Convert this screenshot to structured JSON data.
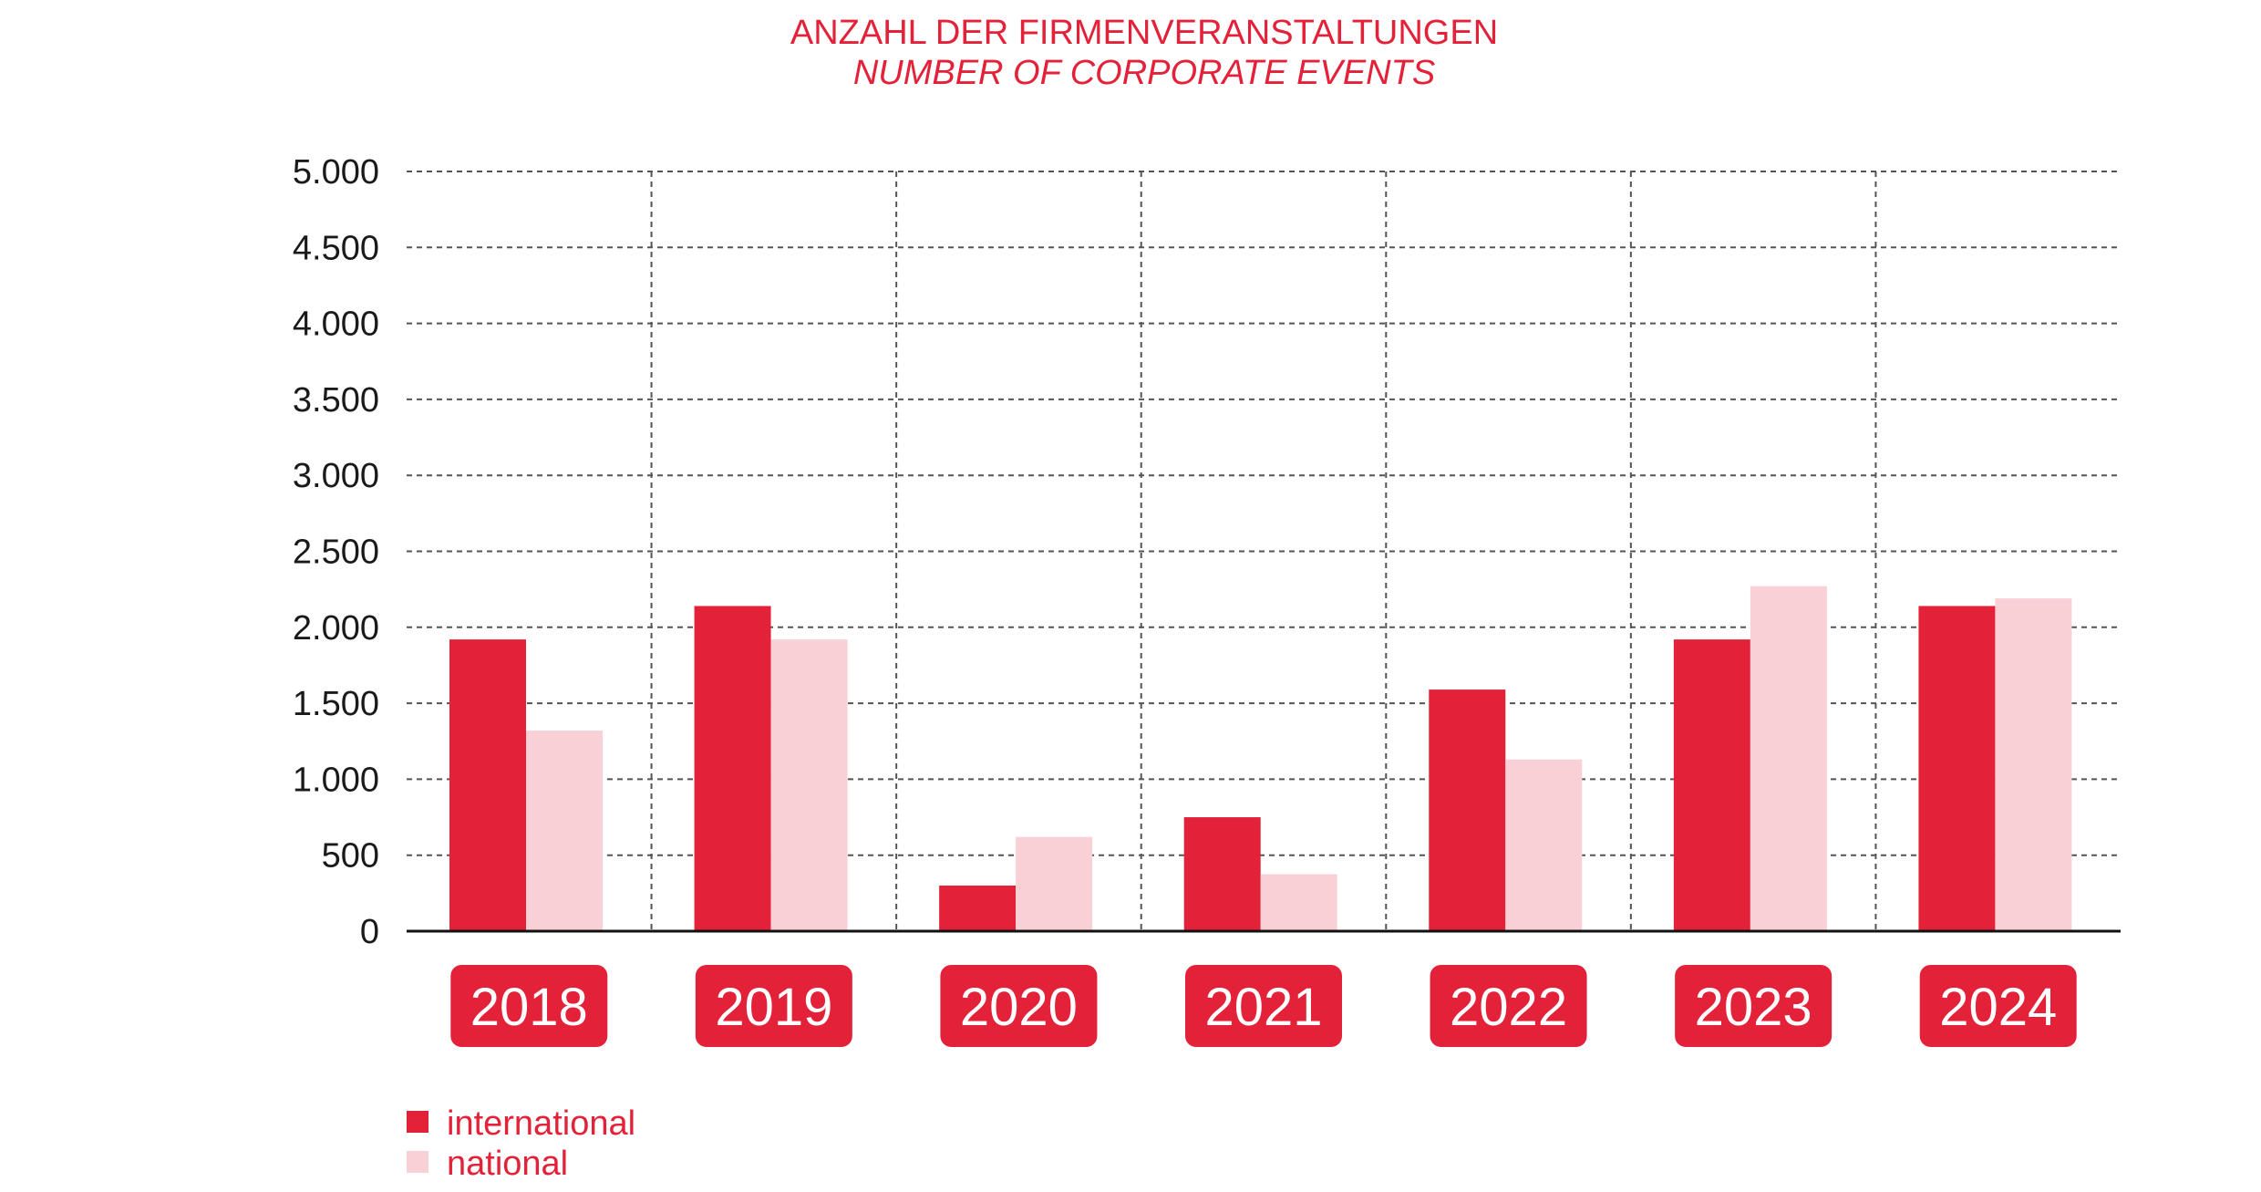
{
  "chart_data": {
    "type": "bar",
    "title": "ANZAHL DER FIRMENVERANSTALTUNGEN",
    "subtitle": "NUMBER OF CORPORATE EVENTS",
    "categories": [
      "2018",
      "2019",
      "2020",
      "2021",
      "2022",
      "2023",
      "2024"
    ],
    "series": [
      {
        "name": "international",
        "color": "#e3223a",
        "values": [
          1920,
          2140,
          300,
          750,
          1590,
          1920,
          2140
        ]
      },
      {
        "name": "national",
        "color": "#f9d0d6",
        "values": [
          1320,
          1920,
          620,
          375,
          1130,
          2270,
          2190
        ]
      }
    ],
    "ylim": [
      0,
      5000
    ],
    "yticks": [
      0,
      500,
      1000,
      1500,
      2000,
      2500,
      3000,
      3500,
      4000,
      4500,
      5000
    ],
    "ytick_labels": [
      "0",
      "500",
      "1.000",
      "1.500",
      "2.000",
      "2.500",
      "3.000",
      "3.500",
      "4.000",
      "4.500",
      "5.000"
    ],
    "xlabel": "",
    "ylabel": "",
    "grid": true,
    "legend_position": "bottom-left"
  }
}
